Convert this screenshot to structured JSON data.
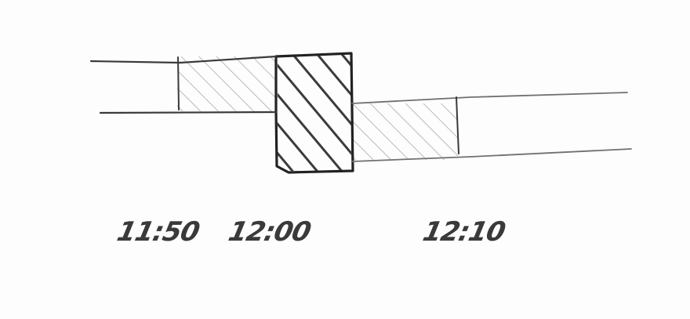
{
  "timeline": {
    "labels": [
      "11:50",
      "12:00",
      "12:10"
    ]
  },
  "colors": {
    "pencil": "#3a3a3a",
    "pencil_light": "#8a8a8a",
    "pencil_dark": "#222222",
    "paper": "#fdfdfd"
  }
}
